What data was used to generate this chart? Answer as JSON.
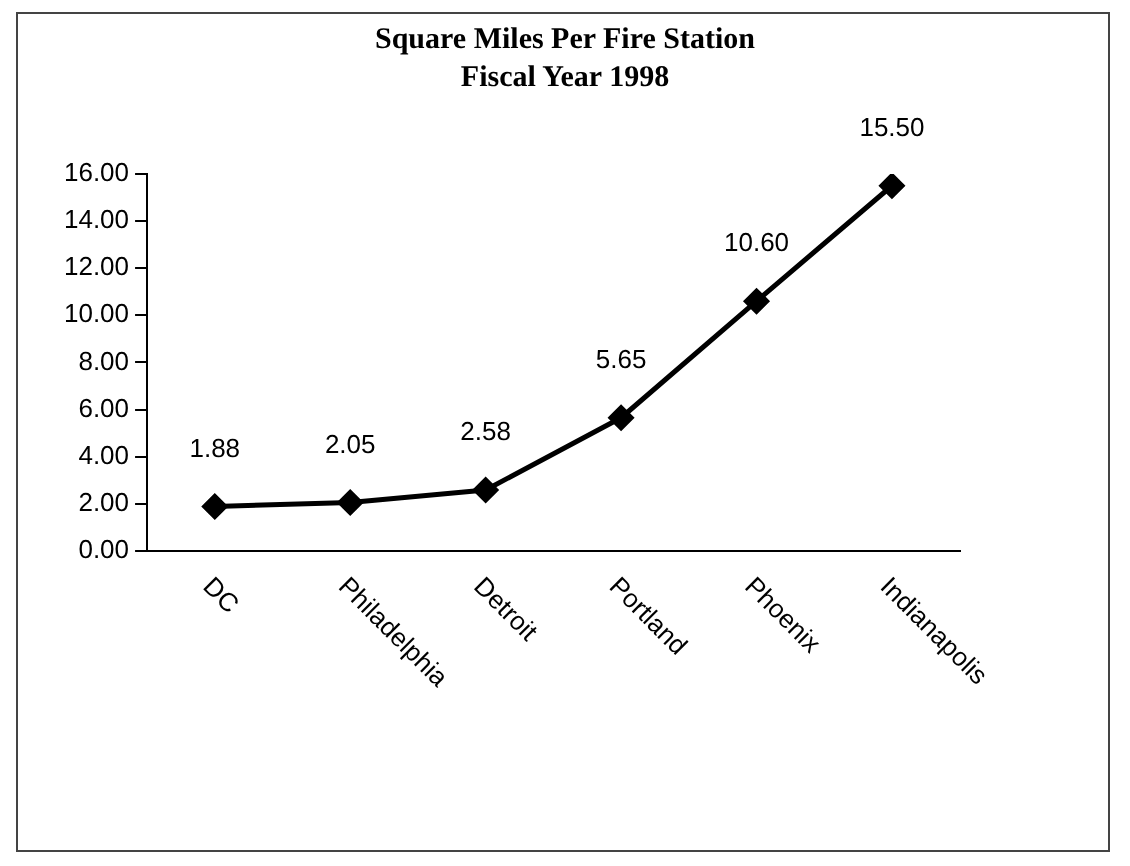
{
  "chart_data": {
    "type": "line",
    "title": "Square Miles Per Fire Station\nFiscal Year 1998",
    "categories": [
      "DC",
      "Philadelphia",
      "Detroit",
      "Portland",
      "Phoenix",
      "Indianapolis"
    ],
    "series": [
      {
        "color": "#000000",
        "values": [
          1.88,
          2.05,
          2.58,
          5.65,
          10.6,
          15.5
        ],
        "value_labels": [
          "1.88",
          "2.05",
          "2.58",
          "5.65",
          "10.60",
          "15.50"
        ]
      }
    ],
    "ylim": [
      0,
      16
    ],
    "yticks": [
      {
        "value": 0,
        "label": "0.00"
      },
      {
        "value": 2,
        "label": "2.00"
      },
      {
        "value": 4,
        "label": "4.00"
      },
      {
        "value": 6,
        "label": "6.00"
      },
      {
        "value": 8,
        "label": "8.00"
      },
      {
        "value": 10,
        "label": "10.00"
      },
      {
        "value": 12,
        "label": "12.00"
      },
      {
        "value": 14,
        "label": "14.00"
      },
      {
        "value": 16,
        "label": "16.00"
      }
    ],
    "grid": false,
    "legend": false,
    "marker": "diamond",
    "line_style": "solid"
  }
}
